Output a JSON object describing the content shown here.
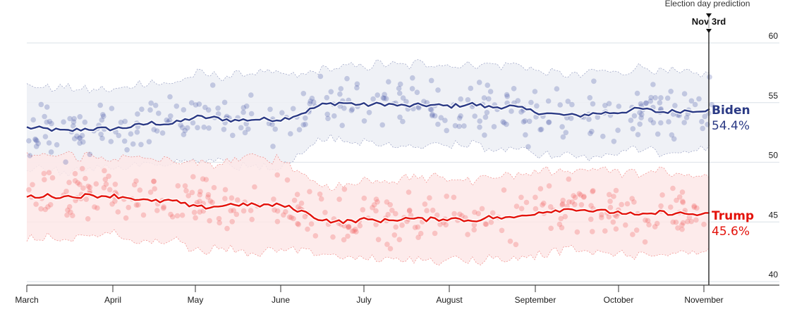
{
  "chart_data": {
    "type": "line",
    "title": "",
    "xlabel": "",
    "ylabel": "",
    "ylim": [
      40,
      60
    ],
    "yticks": [
      "60",
      "55",
      "50",
      "45",
      "40"
    ],
    "xticks": [
      "March",
      "April",
      "May",
      "June",
      "July",
      "August",
      "September",
      "October",
      "November"
    ],
    "grid": true,
    "prediction": {
      "title": "Election day prediction",
      "date_label": "Nov 3rd"
    },
    "x_days": [
      0,
      7,
      14,
      21,
      31,
      38,
      45,
      52,
      61,
      68,
      75,
      82,
      92,
      99,
      106,
      113,
      122,
      129,
      136,
      143,
      153,
      160,
      167,
      174,
      184,
      191,
      198,
      205,
      214,
      221,
      228,
      235,
      245,
      252,
      246
    ],
    "series": [
      {
        "name": "Biden",
        "label_value": "54.4%",
        "color": "#2b3a85",
        "band_color": "#eceef5",
        "dot_color": "#4a5aa8",
        "values": [
          52.9,
          52.8,
          52.6,
          52.8,
          52.8,
          53.0,
          53.3,
          53.2,
          53.8,
          53.7,
          53.5,
          53.6,
          53.6,
          54.1,
          54.8,
          55.0,
          54.8,
          54.9,
          54.7,
          54.8,
          54.7,
          54.9,
          54.6,
          54.7,
          54.2,
          54.0,
          53.9,
          54.1,
          54.2,
          54.5,
          54.2,
          54.3,
          54.4,
          54.3,
          54.4
        ],
        "band_halfwidth": [
          3.5,
          3.4,
          3.6,
          3.3,
          3.2,
          3.4,
          3.5,
          3.3,
          3.6,
          3.5,
          3.8,
          4.0,
          3.8,
          3.2,
          2.9,
          3.0,
          3.2,
          3.4,
          3.3,
          3.5,
          3.4,
          3.3,
          3.6,
          3.5,
          3.5,
          3.4,
          3.3,
          3.6,
          3.3,
          3.5,
          3.4,
          3.2,
          3.1,
          3.3,
          3.1
        ]
      },
      {
        "name": "Trump",
        "label_value": "45.6%",
        "color": "#e3120b",
        "band_color": "#fde8e8",
        "dot_color": "#ef5a5a",
        "values": [
          47.1,
          47.2,
          47.1,
          47.2,
          47.2,
          47.0,
          46.7,
          46.8,
          46.2,
          46.3,
          46.5,
          46.4,
          46.4,
          45.9,
          45.2,
          45.0,
          45.2,
          45.1,
          45.3,
          45.2,
          45.3,
          45.1,
          45.4,
          45.3,
          45.8,
          46.0,
          46.1,
          45.9,
          45.8,
          45.5,
          45.8,
          45.7,
          45.6,
          45.7,
          45.6
        ],
        "band_halfwidth": [
          3.5,
          3.4,
          3.6,
          3.3,
          3.2,
          3.4,
          3.5,
          3.3,
          3.6,
          3.5,
          3.8,
          4.0,
          3.8,
          3.2,
          2.9,
          3.0,
          3.2,
          3.4,
          3.3,
          3.5,
          3.4,
          3.3,
          3.6,
          3.5,
          3.5,
          3.4,
          3.3,
          3.6,
          3.3,
          3.5,
          3.4,
          3.2,
          3.1,
          3.3,
          3.1
        ]
      }
    ]
  }
}
